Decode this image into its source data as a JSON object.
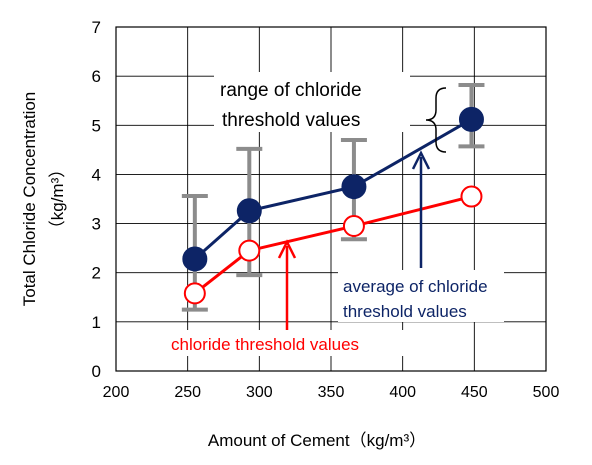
{
  "chart_data": {
    "type": "line",
    "xlabel": "Amount of Cement（kg/m³）",
    "ylabel_line1": "Total Chloride Concentration",
    "ylabel_line2": "（kg/m³）",
    "xlim": [
      200,
      500
    ],
    "ylim": [
      0,
      7
    ],
    "x_ticks": [
      200,
      250,
      300,
      350,
      400,
      450,
      500
    ],
    "y_ticks": [
      0,
      1,
      2,
      3,
      4,
      5,
      6,
      7
    ],
    "grid": true,
    "series": [
      {
        "id": "average",
        "marker": "filled-circle",
        "color": "#0d2466",
        "x": [
          255,
          293,
          366,
          448
        ],
        "y": [
          2.28,
          3.26,
          3.75,
          5.12
        ],
        "error_low": [
          1.25,
          1.95,
          2.68,
          4.57
        ],
        "error_high": [
          3.56,
          4.52,
          4.7,
          5.82
        ]
      },
      {
        "id": "threshold",
        "marker": "open-circle",
        "color": "#ff0000",
        "x": [
          255,
          293,
          366,
          448
        ],
        "y": [
          1.58,
          2.45,
          2.95,
          3.55
        ]
      }
    ],
    "error_bar_color": "#8c8c8c",
    "annotations": {
      "range_line1": "range of chloride",
      "range_line2": "threshold values",
      "average_line1": "average of chloride",
      "average_line2": "threshold values",
      "threshold": "chloride threshold values"
    }
  }
}
